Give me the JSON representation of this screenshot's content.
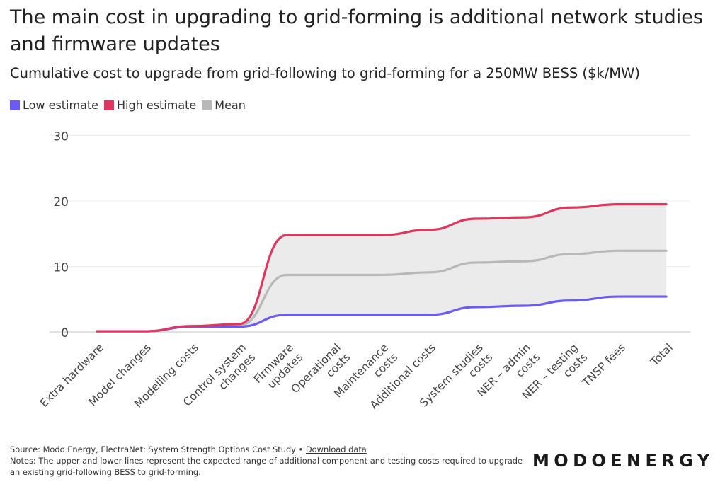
{
  "title": "The main cost in upgrading to grid-forming is additional network studies and firmware updates",
  "subtitle": "Cumulative cost to upgrade from grid-following to grid-forming for a 250MW BESS ($k/MW)",
  "footer": {
    "source_text": "Source: Modo Energy, ElectraNet: System Strength Options Cost Study •",
    "download_link": "Download data",
    "notes": "Notes: The upper and lower lines represent the expected range of additional component and testing costs required to upgrade an existing grid-following BESS to grid-forming."
  },
  "brand": "MODOENERGY",
  "colors": {
    "low": "#6b5bf0",
    "high": "#e0355c",
    "mean": "#b8b8b8",
    "band": "#ebebeb",
    "grid": "#ececec"
  },
  "chart_data": {
    "type": "area",
    "title": "The main cost in upgrading to grid-forming is additional network studies and firmware updates",
    "subtitle": "Cumulative cost to upgrade from grid-following to grid-forming for a 250MW BESS ($k/MW)",
    "xlabel": "",
    "ylabel": "",
    "ylim": [
      0,
      30
    ],
    "yticks": [
      0,
      10,
      20,
      30
    ],
    "grid": true,
    "legend_position": "top-left",
    "categories": [
      "Extra hardware",
      "Model changes",
      "Modelling costs",
      "Control system changes",
      "Firmware updates",
      "Operational costs",
      "Maintenance costs",
      "Additional costs",
      "System studies costs",
      "NER – admin costs",
      "NER – testing costs",
      "TNSP fees",
      "Total"
    ],
    "series": [
      {
        "name": "Low estimate",
        "key": "low",
        "values": [
          0.1,
          0.1,
          0.8,
          0.8,
          2.6,
          2.6,
          2.6,
          2.6,
          3.8,
          4.0,
          4.8,
          5.4,
          5.4
        ]
      },
      {
        "name": "High estimate",
        "key": "high",
        "values": [
          0.1,
          0.1,
          0.9,
          1.2,
          14.8,
          14.8,
          14.8,
          15.6,
          17.3,
          17.5,
          19.0,
          19.5,
          19.5
        ]
      },
      {
        "name": "Mean",
        "key": "mean",
        "values": [
          0.1,
          0.1,
          0.8,
          1.0,
          8.7,
          8.7,
          8.7,
          9.1,
          10.6,
          10.8,
          11.9,
          12.4,
          12.4
        ]
      }
    ]
  }
}
